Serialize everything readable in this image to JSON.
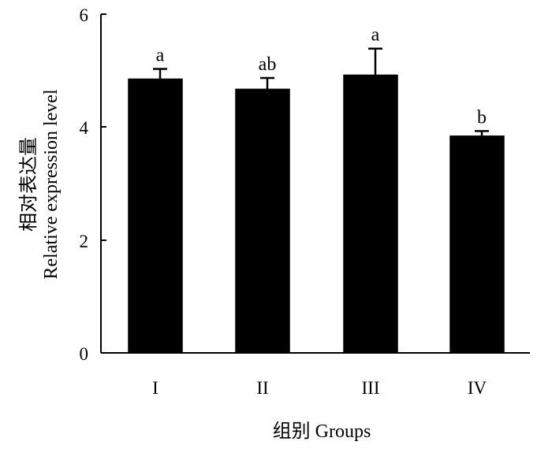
{
  "chart_data": {
    "type": "bar",
    "categories": [
      "I",
      "II",
      "III",
      "IV"
    ],
    "values": [
      4.85,
      4.67,
      4.92,
      3.84
    ],
    "errors": [
      0.18,
      0.2,
      0.47,
      0.09
    ],
    "significance": [
      "a",
      "ab",
      "a",
      "b"
    ],
    "ylim": [
      0,
      6
    ],
    "yticks": [
      "0",
      "2",
      "4",
      "6"
    ],
    "ylabel_cn": "相对表达量",
    "ylabel_en": "Relative expression level",
    "xlabel": "组别  Groups",
    "bar_color": "#000000",
    "grid": false,
    "legend": "none"
  }
}
